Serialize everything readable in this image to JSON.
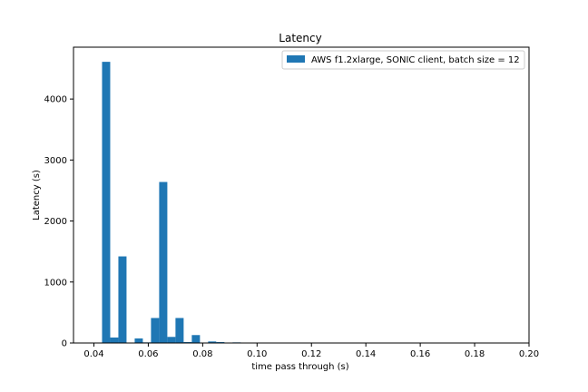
{
  "chart_data": {
    "type": "bar",
    "title": "Latency",
    "xlabel": "time pass through (s)",
    "ylabel": "Latency (s)",
    "xlim": [
      0.0325,
      0.2
    ],
    "ylim": [
      0,
      4850
    ],
    "xticks": [
      0.04,
      0.06,
      0.08,
      0.1,
      0.12,
      0.14,
      0.16,
      0.18,
      0.2
    ],
    "xtick_labels": [
      "0.04",
      "0.06",
      "0.08",
      "0.10",
      "0.12",
      "0.14",
      "0.16",
      "0.18",
      "0.20"
    ],
    "yticks": [
      0,
      1000,
      2000,
      3000,
      4000
    ],
    "ytick_labels": [
      "0",
      "1000",
      "2000",
      "3000",
      "4000"
    ],
    "grid": false,
    "legend_position": "top-right",
    "color": "#1f77b4",
    "series": [
      {
        "name": "AWS f1.2xlarge, SONIC client, batch size = 12",
        "bin_width": 0.003,
        "bins": [
          {
            "x0": 0.043,
            "value": 4610
          },
          {
            "x0": 0.046,
            "value": 90
          },
          {
            "x0": 0.049,
            "value": 1420
          },
          {
            "x0": 0.052,
            "value": 5
          },
          {
            "x0": 0.055,
            "value": 75
          },
          {
            "x0": 0.058,
            "value": 10
          },
          {
            "x0": 0.061,
            "value": 410
          },
          {
            "x0": 0.064,
            "value": 2640
          },
          {
            "x0": 0.067,
            "value": 100
          },
          {
            "x0": 0.07,
            "value": 410
          },
          {
            "x0": 0.073,
            "value": 15
          },
          {
            "x0": 0.076,
            "value": 130
          },
          {
            "x0": 0.079,
            "value": 5
          },
          {
            "x0": 0.082,
            "value": 25
          },
          {
            "x0": 0.085,
            "value": 15
          },
          {
            "x0": 0.088,
            "value": 3
          },
          {
            "x0": 0.091,
            "value": 10
          },
          {
            "x0": 0.094,
            "value": 2
          },
          {
            "x0": 0.097,
            "value": 1
          }
        ]
      }
    ]
  }
}
